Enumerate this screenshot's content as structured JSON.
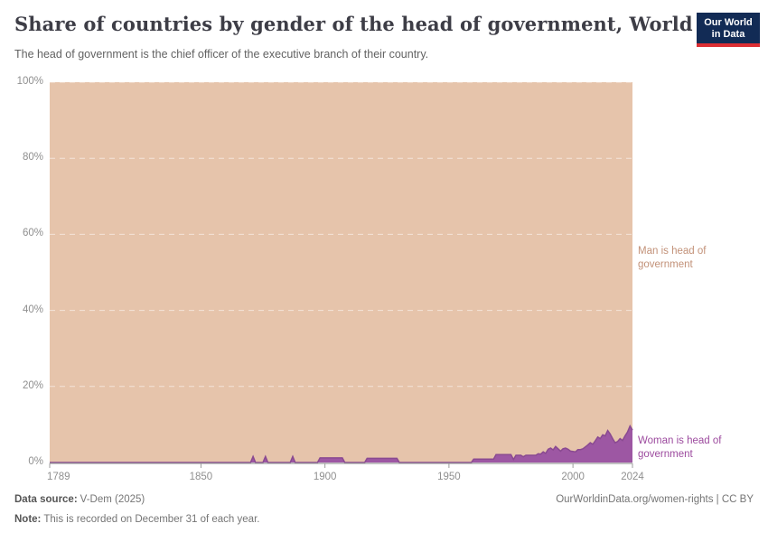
{
  "header": {
    "title": "Share of countries by gender of the head of government, World",
    "subtitle": "The head of government is the chief officer of the executive branch of their country.",
    "logo": {
      "line1": "Our World",
      "line2": "in Data",
      "bg_color": "#122b55",
      "accent_color": "#dc2e33"
    }
  },
  "chart_data": {
    "type": "area",
    "stacked": true,
    "title": "Share of countries by gender of the head of government, World",
    "xlabel": "",
    "ylabel": "",
    "x_range": [
      1789,
      2024
    ],
    "y_range": [
      0,
      100
    ],
    "y_unit": "%",
    "grid": "horizontal-dashed",
    "legend_position": "right-edge-annotations",
    "x_ticks": {
      "values": [
        1789,
        1850,
        1900,
        1950,
        2000,
        2024
      ],
      "labels": [
        "1789",
        "1850",
        "1900",
        "1950",
        "2000",
        "2024"
      ]
    },
    "y_ticks": {
      "values": [
        0,
        20,
        40,
        60,
        80,
        100
      ],
      "labels": [
        "0%",
        "20%",
        "40%",
        "60%",
        "80%",
        "100%"
      ]
    },
    "series": [
      {
        "name": "Man is head of government",
        "color": "#e6c4ab",
        "label_color": "#c29178",
        "definition": "stacked residual: 100 minus woman share"
      },
      {
        "name": "Woman is head of government",
        "color": "#9d57a3",
        "stroke_color": "#8a4a91",
        "label_color": "#9c4a9e",
        "points": [
          [
            1789,
            0
          ],
          [
            1870,
            0
          ],
          [
            1871,
            1.6
          ],
          [
            1872,
            0
          ],
          [
            1875,
            0
          ],
          [
            1876,
            1.6
          ],
          [
            1877,
            0
          ],
          [
            1886,
            0
          ],
          [
            1887,
            1.6
          ],
          [
            1888,
            0
          ],
          [
            1897,
            0
          ],
          [
            1898,
            1.2
          ],
          [
            1907,
            1.2
          ],
          [
            1908,
            0
          ],
          [
            1916,
            0
          ],
          [
            1917,
            1.1
          ],
          [
            1929,
            1.1
          ],
          [
            1930,
            0
          ],
          [
            1959,
            0
          ],
          [
            1960,
            0.9
          ],
          [
            1968,
            0.9
          ],
          [
            1969,
            2.1
          ],
          [
            1975,
            2.1
          ],
          [
            1976,
            0.8
          ],
          [
            1977,
            1.9
          ],
          [
            1979,
            1.9
          ],
          [
            1980,
            1.5
          ],
          [
            1981,
            1.9
          ],
          [
            1985,
            1.9
          ],
          [
            1986,
            2.3
          ],
          [
            1987,
            2.2
          ],
          [
            1988,
            2.8
          ],
          [
            1989,
            2.4
          ],
          [
            1990,
            3.5
          ],
          [
            1991,
            3.8
          ],
          [
            1992,
            3.3
          ],
          [
            1993,
            4.2
          ],
          [
            1994,
            3.6
          ],
          [
            1995,
            3.0
          ],
          [
            1996,
            3.6
          ],
          [
            1997,
            3.8
          ],
          [
            1998,
            3.5
          ],
          [
            1999,
            3.0
          ],
          [
            2000,
            2.9
          ],
          [
            2001,
            2.8
          ],
          [
            2002,
            3.4
          ],
          [
            2003,
            3.4
          ],
          [
            2004,
            3.6
          ],
          [
            2005,
            4.1
          ],
          [
            2006,
            4.6
          ],
          [
            2007,
            5.2
          ],
          [
            2008,
            4.8
          ],
          [
            2009,
            5.7
          ],
          [
            2010,
            6.7
          ],
          [
            2011,
            6.3
          ],
          [
            2012,
            7.3
          ],
          [
            2013,
            7.0
          ],
          [
            2014,
            8.4
          ],
          [
            2015,
            7.5
          ],
          [
            2016,
            6.3
          ],
          [
            2017,
            5.2
          ],
          [
            2018,
            5.5
          ],
          [
            2019,
            6.3
          ],
          [
            2020,
            5.8
          ],
          [
            2021,
            7.0
          ],
          [
            2022,
            8.0
          ],
          [
            2023,
            9.6
          ],
          [
            2024,
            8.5
          ]
        ]
      }
    ]
  },
  "footer": {
    "data_source_label": "Data source:",
    "data_source_value": "V-Dem (2025)",
    "note_label": "Note:",
    "note_value": "This is recorded on December 31 of each year.",
    "credit": "OurWorldinData.org/women-rights | CC BY"
  }
}
